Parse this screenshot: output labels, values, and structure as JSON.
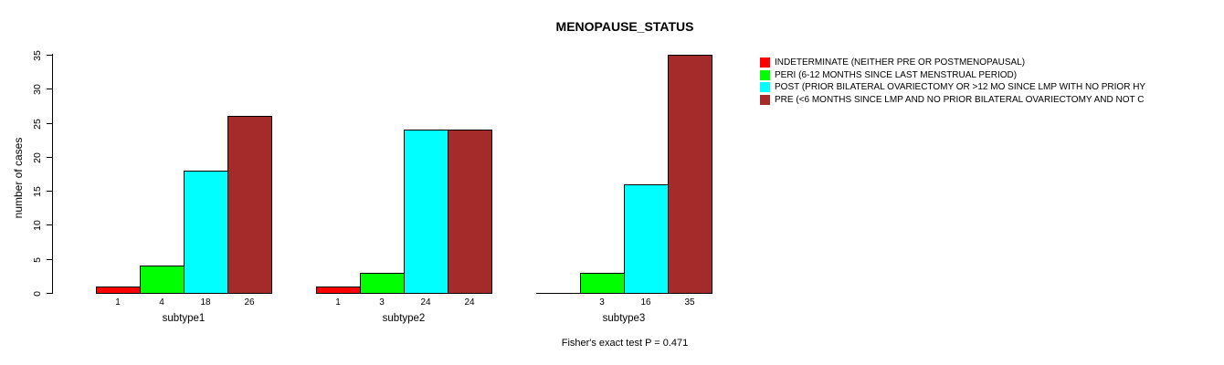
{
  "chart_data": {
    "type": "bar",
    "title": "MENOPAUSE_STATUS",
    "ylabel": "number of cases",
    "ylim": [
      0,
      35
    ],
    "yticks": [
      0,
      5,
      10,
      15,
      20,
      25,
      30,
      35
    ],
    "categories": [
      "subtype1",
      "subtype2",
      "subtype3"
    ],
    "series": [
      {
        "name": "INDETERMINATE (NEITHER PRE OR POSTMENOPAUSAL)",
        "color": "#FF0000",
        "values": [
          1,
          1,
          0
        ]
      },
      {
        "name": "PERI (6-12 MONTHS SINCE LAST MENSTRUAL PERIOD)",
        "color": "#00FF00",
        "values": [
          4,
          3,
          3
        ]
      },
      {
        "name": "POST (PRIOR BILATERAL OVARIECTOMY OR >12 MO SINCE LMP WITH NO PRIOR HY",
        "color": "#00FFFF",
        "values": [
          18,
          24,
          16
        ]
      },
      {
        "name": "PRE (<6 MONTHS SINCE LMP AND NO PRIOR BILATERAL OVARIECTOMY AND NOT C",
        "color": "#A52A2A",
        "values": [
          26,
          24,
          35
        ]
      }
    ],
    "bar_value_labels": [
      [
        "1",
        "4",
        "18",
        "26"
      ],
      [
        "1",
        "3",
        "24",
        "24"
      ],
      [
        "",
        "3",
        "16",
        "35"
      ]
    ],
    "legend_position": "right",
    "grid": false,
    "footnote": "Fisher's exact test P = 0.471"
  }
}
